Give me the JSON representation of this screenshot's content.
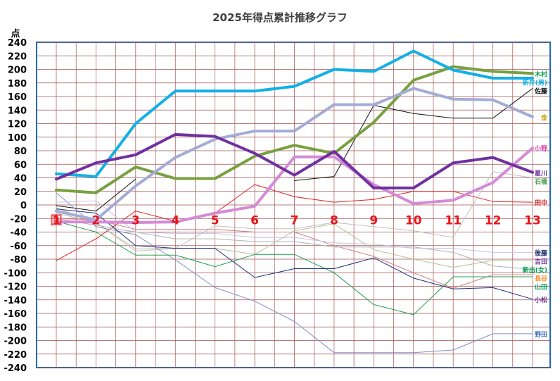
{
  "chart_data": {
    "type": "line",
    "title": "2025年得点累計推移グラフ",
    "ylabel": "点",
    "ylim": [
      -240,
      240
    ],
    "yticks": [
      240,
      220,
      200,
      180,
      160,
      140,
      120,
      100,
      80,
      60,
      40,
      20,
      0,
      -20,
      -40,
      -60,
      -80,
      -100,
      -120,
      -140,
      -160,
      -180,
      -200,
      -220,
      -240
    ],
    "ytick_labels": [
      "240",
      "220",
      "200",
      "180",
      "160",
      "140",
      "120",
      "100",
      "80",
      "60",
      "40",
      "20",
      "0",
      "-20",
      "-40",
      "-60",
      "-80",
      "-100",
      "-120",
      "-140",
      "-160",
      "-180",
      "-200",
      "-220",
      "-240"
    ],
    "x": [
      "1",
      "2",
      "3",
      "4",
      "5",
      "6",
      "7",
      "8",
      "9",
      "10",
      "11",
      "12",
      "13"
    ],
    "x_first_label": "回",
    "grid": true,
    "background_color": "#ffffff",
    "plot_border_color": "#1f6bb5",
    "grid_color": "#a05050",
    "xlabel_color": "#e8141b",
    "series": [
      {
        "name": "木村",
        "color": "#78a040",
        "width": 4,
        "label_color": "#00a050",
        "values": [
          22,
          18,
          56,
          39,
          39,
          72,
          88,
          76,
          122,
          184,
          204,
          197,
          194
        ]
      },
      {
        "name": "新井(男)",
        "color": "#13b0e6",
        "width": 4,
        "label_color": "#13b0e6",
        "values": [
          46,
          42,
          120,
          168,
          168,
          168,
          175,
          200,
          197,
          227,
          199,
          187,
          187
        ]
      },
      {
        "name": "佐藤",
        "color": "#111111",
        "width": 1,
        "label_color": "#111111",
        "values": [
          -1,
          -9,
          38,
          null,
          null,
          null,
          36,
          42,
          147,
          135,
          128,
          128,
          172
        ]
      },
      {
        "name": "金",
        "color": "#a4acd6",
        "width": 4,
        "label_color": "#c8a000",
        "values": [
          -9,
          -22,
          28,
          70,
          97,
          109,
          109,
          148,
          148,
          172,
          156,
          155,
          130
        ]
      },
      {
        "name": "小野",
        "color": "#d48ad6",
        "width": 4,
        "label_color": "#e040b0",
        "values": [
          -25,
          -25,
          -26,
          -25,
          -12,
          -2,
          71,
          71,
          30,
          2,
          7,
          33,
          84
        ]
      },
      {
        "name": "星川",
        "color": "#7030a0",
        "width": 4,
        "label_color": "#7030a0",
        "values": [
          38,
          62,
          74,
          104,
          101,
          76,
          44,
          79,
          25,
          25,
          62,
          70,
          48
        ]
      },
      {
        "name": "吉田",
        "color": "#b8c098",
        "width": 1,
        "label_color": "#7030a0",
        "values": [
          -4,
          -26,
          -65,
          -64,
          -64,
          -73,
          -38,
          -28,
          -66,
          -80,
          -92,
          -82,
          -82
        ]
      },
      {
        "name": "田中",
        "color": "#e02020",
        "width": 1,
        "label_color": "#e02020",
        "values": [
          -82,
          -50,
          -9,
          -24,
          -12,
          30,
          12,
          4,
          8,
          20,
          20,
          5,
          4
        ]
      },
      {
        "name": "石橋",
        "color": "#c0c0c0",
        "width": 1,
        "label_color": "#50a050",
        "values": [
          -12,
          -26,
          -68,
          -64,
          -31,
          -35,
          -35,
          -26,
          -32,
          -38,
          -48,
          49,
          40
        ]
      },
      {
        "name": "野田",
        "color": "#8090c8",
        "width": 1,
        "label_color": "#4070c0",
        "values": [
          18,
          -32,
          -44,
          -81,
          -122,
          -142,
          -172,
          -218,
          -218,
          -218,
          -214,
          -190,
          -190
        ]
      },
      {
        "name": "長谷",
        "color": "#d08080",
        "width": 1,
        "label_color": "#ff9030",
        "values": [
          -20,
          -22,
          -36,
          -36,
          -36,
          -40,
          -40,
          -60,
          -76,
          -100,
          -123,
          -103,
          -103
        ]
      },
      {
        "name": "山田",
        "color": "#20a050",
        "width": 1,
        "label_color": "#00a050",
        "values": [
          -24,
          -40,
          -74,
          -74,
          -91,
          -73,
          -73,
          -100,
          -147,
          -162,
          -106,
          -106,
          -106
        ]
      },
      {
        "name": "新出(女)",
        "color": "#b0b0b0",
        "width": 1,
        "label_color": "#00a050",
        "values": [
          -20,
          -30,
          -40,
          -50,
          -50,
          -54,
          -54,
          -62,
          -62,
          -62,
          -70,
          -90,
          -95
        ]
      },
      {
        "name": "小松",
        "color": "#203080",
        "width": 1,
        "label_color": "#7030a0",
        "values": [
          -6,
          -12,
          -60,
          -64,
          -64,
          -107,
          -94,
          -94,
          -78,
          -108,
          -124,
          -122,
          -139
        ]
      },
      {
        "name": "後藤",
        "color": "#c4c4e8",
        "width": 1,
        "label_color": "#203070",
        "values": [
          4,
          6,
          -40,
          -42,
          -42,
          -48,
          -48,
          -56,
          -58,
          -64,
          -64,
          -70,
          -70
        ]
      }
    ]
  }
}
